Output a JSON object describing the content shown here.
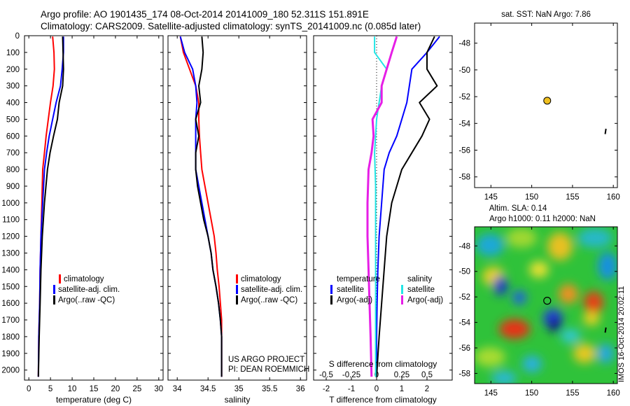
{
  "header": {
    "line1": "Argo profile: AO 1901435_174 08-Oct-2014 20141009_180 52.311S 151.891E",
    "line2": "Climatology: CARS2009. Satellite-adjusted climatology: synTS_20141009.nc (0.085d later)"
  },
  "colors": {
    "climatology": "#ff0000",
    "satellite": "#0000ff",
    "argo": "#000000",
    "sat_salinity": "#22e5e5",
    "argo_salinity": "#e61ee6",
    "marker": "#f0c020"
  },
  "credit": {
    "project": "US ARGO PROJECT",
    "pi": "PI: DEAN ROEMMICH"
  },
  "watermark": "IMOS 16-Oct-2014 20:02:11",
  "chart_data": [
    {
      "id": "temperature",
      "type": "line",
      "xlabel": "temperature (deg C)",
      "ylabel": "",
      "xlim": [
        -1,
        31
      ],
      "ylim": [
        2060,
        0
      ],
      "xticks": [
        0,
        5,
        10,
        15,
        20,
        25,
        30
      ],
      "yticks": [
        0,
        100,
        200,
        300,
        400,
        500,
        600,
        700,
        800,
        900,
        1000,
        1100,
        1200,
        1300,
        1400,
        1500,
        1600,
        1700,
        1800,
        1900,
        2000
      ],
      "legend": [
        "climatology",
        "satellite-adj. clim.",
        "Argo(..raw -QC)"
      ],
      "series": [
        {
          "name": "climatology",
          "color": "#ff0000",
          "points": [
            [
              5.5,
              5
            ],
            [
              5.8,
              100
            ],
            [
              5.9,
              200
            ],
            [
              5.6,
              300
            ],
            [
              5.0,
              400
            ],
            [
              4.5,
              500
            ],
            [
              4.0,
              600
            ],
            [
              3.6,
              700
            ],
            [
              3.2,
              800
            ],
            [
              3.0,
              1000
            ],
            [
              2.8,
              1200
            ],
            [
              2.6,
              1400
            ],
            [
              2.5,
              1600
            ],
            [
              2.3,
              1800
            ],
            [
              2.2,
              2040
            ]
          ]
        },
        {
          "name": "satellite-adj. clim.",
          "color": "#0000ff",
          "points": [
            [
              8.0,
              5
            ],
            [
              8.0,
              100
            ],
            [
              7.7,
              200
            ],
            [
              7.3,
              300
            ],
            [
              6.3,
              400
            ],
            [
              5.5,
              500
            ],
            [
              4.7,
              600
            ],
            [
              4.1,
              700
            ],
            [
              3.6,
              800
            ],
            [
              3.2,
              1000
            ],
            [
              2.8,
              1200
            ],
            [
              2.6,
              1400
            ],
            [
              2.5,
              1600
            ],
            [
              2.3,
              1800
            ],
            [
              2.2,
              2040
            ]
          ]
        },
        {
          "name": "Argo(..raw -QC)",
          "color": "#000000",
          "points": [
            [
              7.8,
              5
            ],
            [
              7.9,
              100
            ],
            [
              8.0,
              200
            ],
            [
              7.8,
              300
            ],
            [
              7.0,
              400
            ],
            [
              6.6,
              500
            ],
            [
              5.7,
              600
            ],
            [
              4.9,
              700
            ],
            [
              4.3,
              800
            ],
            [
              3.6,
              1000
            ],
            [
              3.1,
              1200
            ],
            [
              2.8,
              1400
            ],
            [
              2.6,
              1600
            ],
            [
              2.4,
              1800
            ],
            [
              2.2,
              2040
            ]
          ]
        }
      ]
    },
    {
      "id": "salinity",
      "type": "line",
      "xlabel": "salinity",
      "ylabel": "",
      "xlim": [
        33.85,
        36.1
      ],
      "ylim": [
        2060,
        0
      ],
      "xticks": [
        34,
        34.5,
        35,
        35.5,
        36
      ],
      "legend": [
        "climatology",
        "satellite-adj. clim.",
        "Argo(..raw -QC)"
      ],
      "series": [
        {
          "name": "climatology",
          "color": "#ff0000",
          "points": [
            [
              34.05,
              5
            ],
            [
              34.1,
              100
            ],
            [
              34.2,
              200
            ],
            [
              34.3,
              300
            ],
            [
              34.35,
              400
            ],
            [
              34.35,
              500
            ],
            [
              34.36,
              600
            ],
            [
              34.38,
              700
            ],
            [
              34.4,
              800
            ],
            [
              34.45,
              900
            ],
            [
              34.5,
              1000
            ],
            [
              34.55,
              1100
            ],
            [
              34.6,
              1200
            ],
            [
              34.63,
              1300
            ],
            [
              34.65,
              1400
            ],
            [
              34.68,
              1500
            ],
            [
              34.7,
              1600
            ],
            [
              34.72,
              1700
            ],
            [
              34.72,
              1800
            ],
            [
              34.72,
              2040
            ]
          ]
        },
        {
          "name": "satellite-adj. clim.",
          "color": "#0000ff",
          "points": [
            [
              34.05,
              5
            ],
            [
              34.12,
              100
            ],
            [
              34.25,
              200
            ],
            [
              34.3,
              300
            ],
            [
              34.32,
              400
            ],
            [
              34.3,
              500
            ],
            [
              34.3,
              600
            ],
            [
              34.3,
              700
            ],
            [
              34.3,
              800
            ],
            [
              34.35,
              900
            ],
            [
              34.4,
              1000
            ],
            [
              34.45,
              1100
            ],
            [
              34.5,
              1200
            ],
            [
              34.55,
              1300
            ],
            [
              34.58,
              1400
            ],
            [
              34.63,
              1500
            ],
            [
              34.67,
              1600
            ],
            [
              34.7,
              1700
            ],
            [
              34.72,
              1800
            ],
            [
              34.72,
              2040
            ]
          ]
        },
        {
          "name": "Argo(..raw -QC)",
          "color": "#000000",
          "points": [
            [
              34.4,
              5
            ],
            [
              34.42,
              100
            ],
            [
              34.4,
              200
            ],
            [
              34.35,
              300
            ],
            [
              34.38,
              400
            ],
            [
              34.3,
              500
            ],
            [
              34.35,
              600
            ],
            [
              34.3,
              700
            ],
            [
              34.3,
              800
            ],
            [
              34.33,
              900
            ],
            [
              34.38,
              1000
            ],
            [
              34.43,
              1100
            ],
            [
              34.5,
              1200
            ],
            [
              34.55,
              1300
            ],
            [
              34.58,
              1400
            ],
            [
              34.63,
              1500
            ],
            [
              34.67,
              1600
            ],
            [
              34.7,
              1700
            ],
            [
              34.72,
              1800
            ],
            [
              34.72,
              2040
            ]
          ]
        }
      ]
    },
    {
      "id": "difference",
      "type": "line",
      "xlabel": "T difference from climatology",
      "xlabel2": "S difference from climatology",
      "xlim": [
        -2.5,
        3.0
      ],
      "ylim": [
        2060,
        0
      ],
      "xticks": [
        -2,
        -1,
        0,
        1,
        2
      ],
      "xticks_S": [
        -0.5,
        -0.25,
        0,
        0.25,
        0.5
      ],
      "legend_titles": [
        "temperature",
        "salinity"
      ],
      "legend": [
        "satellite",
        "Argo(-adj)",
        "satellite",
        "Argo(-adj)"
      ],
      "series": [
        {
          "name": "temperature satellite",
          "color": "#0000ff",
          "points": [
            [
              2.5,
              5
            ],
            [
              2.0,
              100
            ],
            [
              1.4,
              200
            ],
            [
              1.3,
              300
            ],
            [
              1.2,
              400
            ],
            [
              1.0,
              500
            ],
            [
              0.8,
              600
            ],
            [
              0.5,
              700
            ],
            [
              0.3,
              800
            ],
            [
              0.2,
              1000
            ],
            [
              0.1,
              1200
            ],
            [
              0.05,
              1400
            ],
            [
              0.02,
              1600
            ],
            [
              0.0,
              1800
            ],
            [
              0.0,
              2040
            ]
          ]
        },
        {
          "name": "temperature Argo(-adj)",
          "color": "#000000",
          "points": [
            [
              2.3,
              5
            ],
            [
              2.0,
              100
            ],
            [
              2.0,
              200
            ],
            [
              2.4,
              300
            ],
            [
              1.7,
              400
            ],
            [
              2.1,
              500
            ],
            [
              1.8,
              600
            ],
            [
              1.4,
              700
            ],
            [
              1.0,
              800
            ],
            [
              0.6,
              1000
            ],
            [
              0.4,
              1200
            ],
            [
              0.3,
              1400
            ],
            [
              0.2,
              1600
            ],
            [
              0.1,
              1800
            ],
            [
              0.0,
              2040
            ]
          ]
        },
        {
          "name": "salinity satellite",
          "color": "#22e5e5",
          "points": [
            [
              -0.02,
              5
            ],
            [
              -0.02,
              100
            ],
            [
              0.1,
              200
            ],
            [
              0.05,
              300
            ],
            [
              0.0,
              500
            ],
            [
              -0.02,
              700
            ],
            [
              -0.01,
              900
            ],
            [
              -0.01,
              1100
            ],
            [
              -0.01,
              1300
            ],
            [
              -0.01,
              1500
            ],
            [
              -0.01,
              1700
            ],
            [
              -0.01,
              1900
            ],
            [
              -0.01,
              2040
            ]
          ]
        },
        {
          "name": "salinity Argo(-adj)",
          "color": "#e61ee6",
          "points": [
            [
              0.2,
              5
            ],
            [
              0.15,
              100
            ],
            [
              0.1,
              200
            ],
            [
              0.05,
              300
            ],
            [
              0.05,
              400
            ],
            [
              -0.04,
              500
            ],
            [
              -0.03,
              600
            ],
            [
              -0.05,
              700
            ],
            [
              -0.08,
              800
            ],
            [
              -0.09,
              1000
            ],
            [
              -0.09,
              1200
            ],
            [
              -0.08,
              1400
            ],
            [
              -0.07,
              1600
            ],
            [
              -0.06,
              1800
            ],
            [
              -0.05,
              2040
            ]
          ]
        }
      ]
    },
    {
      "id": "sst-map",
      "type": "scatter",
      "title": "sat. SST: NaN Argo: 7.86",
      "xlim": [
        143,
        160.5
      ],
      "ylim": [
        -58.8,
        -46.5
      ],
      "xticks": [
        145,
        150,
        155,
        160
      ],
      "yticks": [
        -48,
        -50,
        -52,
        -54,
        -56,
        -58
      ],
      "points": [
        [
          151.9,
          -52.3
        ]
      ]
    },
    {
      "id": "sla-map",
      "type": "heatmap",
      "title": "Altim. SLA: 0.14",
      "subtitle": "Argo h1000: 0.11 h2000: NaN",
      "xlim": [
        143,
        160.5
      ],
      "ylim": [
        -58.8,
        -46.5
      ],
      "xticks": [
        145,
        150,
        155,
        160
      ],
      "yticks": [
        -48,
        -50,
        -52,
        -54,
        -56,
        -58
      ],
      "points": [
        [
          151.9,
          -52.3
        ]
      ]
    }
  ]
}
